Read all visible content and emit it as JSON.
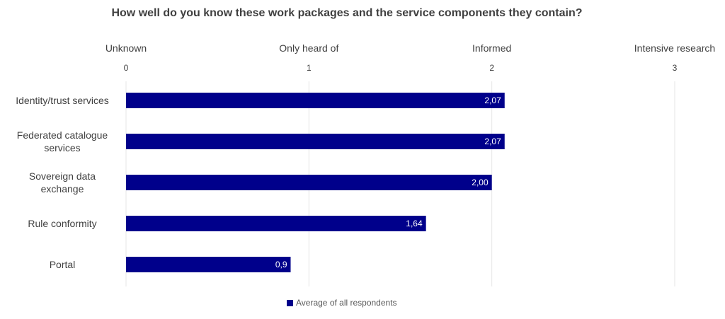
{
  "chart_data": {
    "type": "bar",
    "orientation": "horizontal",
    "title": "How well do you know these work packages and the service components they contain?",
    "scale_labels": [
      "Unknown",
      "Only heard of",
      "Informed",
      "Intensive research"
    ],
    "ticks": [
      "0",
      "1",
      "2",
      "3"
    ],
    "xlim": [
      0,
      3
    ],
    "grid": true,
    "categories": [
      [
        "Identity/trust services"
      ],
      [
        "Federated catalogue",
        "services"
      ],
      [
        "Sovereign data",
        "exchange"
      ],
      [
        "Rule conformity"
      ],
      [
        "Portal"
      ]
    ],
    "series": [
      {
        "name": "Average of all respondents",
        "values": [
          2.07,
          2.07,
          2.0,
          1.64,
          0.9
        ],
        "labels": [
          "2,07",
          "2,07",
          "2,00",
          "1,64",
          "0,9"
        ],
        "color": "#00008b"
      }
    ],
    "legend_position": "bottom"
  }
}
